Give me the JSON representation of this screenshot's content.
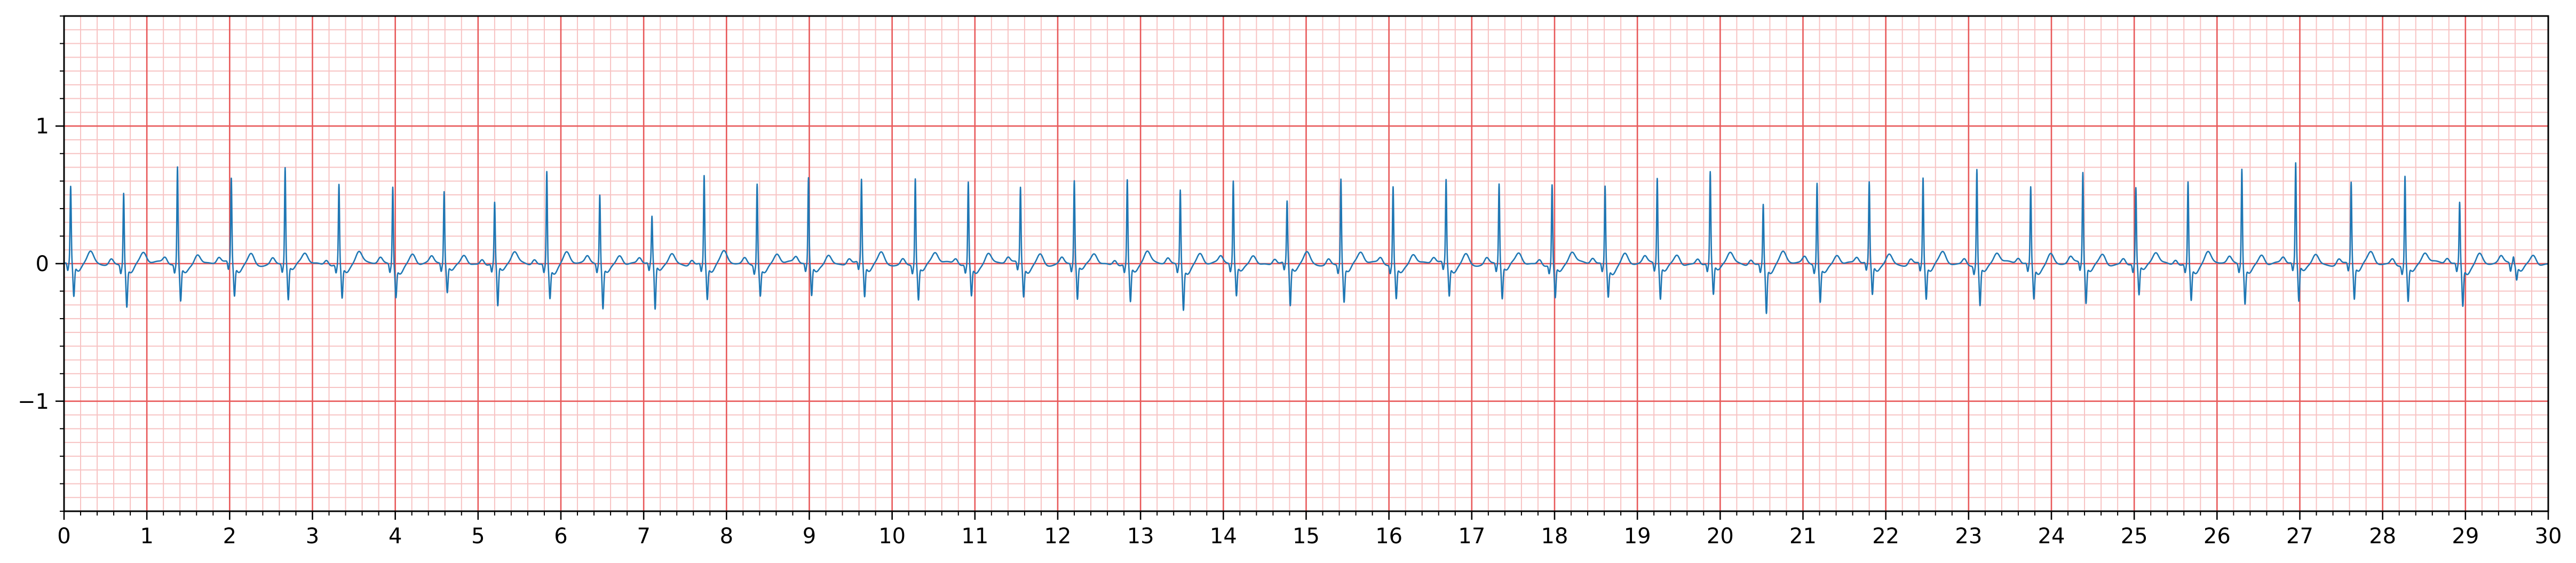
{
  "chart_data": {
    "type": "line",
    "title": "",
    "xlabel": "",
    "ylabel": "",
    "xlim": [
      0,
      30
    ],
    "ylim": [
      -1.8,
      1.8
    ],
    "x_ticks": [
      0,
      1,
      2,
      3,
      4,
      5,
      6,
      7,
      8,
      9,
      10,
      11,
      12,
      13,
      14,
      15,
      16,
      17,
      18,
      19,
      20,
      21,
      22,
      23,
      24,
      25,
      26,
      27,
      28,
      29,
      30
    ],
    "x_tick_labels": [
      "0",
      "1",
      "2",
      "3",
      "4",
      "5",
      "6",
      "7",
      "8",
      "9",
      "10",
      "11",
      "12",
      "13",
      "14",
      "15",
      "16",
      "17",
      "18",
      "19",
      "20",
      "21",
      "22",
      "23",
      "24",
      "25",
      "26",
      "27",
      "28",
      "29",
      "30"
    ],
    "y_ticks": [
      -1,
      0,
      1
    ],
    "y_tick_labels": [
      "−1",
      "0",
      "1"
    ],
    "grid": "ecg paper: major lines every 1 s and 1 mV, minor lines every 0.2 s and 0.1 mV",
    "colors": {
      "trace": "#1f77b4",
      "major_grid": "#e8595a",
      "minor_grid": "#f7c3c3",
      "axes": "#000000"
    },
    "series": [
      {
        "name": "",
        "beat_times": [
          0.08,
          0.72,
          1.37,
          2.02,
          2.67,
          3.32,
          3.97,
          4.59,
          5.2,
          5.83,
          6.47,
          7.1,
          7.73,
          8.37,
          8.99,
          9.63,
          10.28,
          10.92,
          11.55,
          12.2,
          12.84,
          13.48,
          14.12,
          14.77,
          15.42,
          16.05,
          16.69,
          17.33,
          17.97,
          18.61,
          19.24,
          19.88,
          20.52,
          21.17,
          21.8,
          22.45,
          23.1,
          23.75,
          24.38,
          25.02,
          25.65,
          26.3,
          26.95,
          27.62,
          28.27,
          28.93,
          29.58
        ],
        "r_peak_amplitudes": [
          0.55,
          0.53,
          0.71,
          0.61,
          0.7,
          0.58,
          0.57,
          0.52,
          0.44,
          0.68,
          0.51,
          0.33,
          0.64,
          0.6,
          0.62,
          0.6,
          0.63,
          0.6,
          0.55,
          0.6,
          0.61,
          0.55,
          0.6,
          0.44,
          0.63,
          0.57,
          0.6,
          0.58,
          0.58,
          0.57,
          0.62,
          0.66,
          0.44,
          0.6,
          0.58,
          0.62,
          0.7,
          0.56,
          0.66,
          0.55,
          0.6,
          0.7,
          0.72,
          0.59,
          0.65,
          0.45,
          0.05
        ],
        "s_wave_amplitudes": [
          -0.23,
          -0.28,
          -0.25,
          -0.22,
          -0.25,
          -0.23,
          -0.21,
          -0.2,
          -0.3,
          -0.22,
          -0.3,
          -0.33,
          -0.24,
          -0.2,
          -0.22,
          -0.23,
          -0.24,
          -0.21,
          -0.22,
          -0.25,
          -0.26,
          -0.3,
          -0.22,
          -0.3,
          -0.25,
          -0.23,
          -0.22,
          -0.24,
          -0.23,
          -0.21,
          -0.24,
          -0.22,
          -0.33,
          -0.25,
          -0.22,
          -0.24,
          -0.28,
          -0.23,
          -0.27,
          -0.22,
          -0.24,
          -0.26,
          -0.27,
          -0.24,
          -0.25,
          -0.28,
          -0.1
        ]
      }
    ]
  }
}
